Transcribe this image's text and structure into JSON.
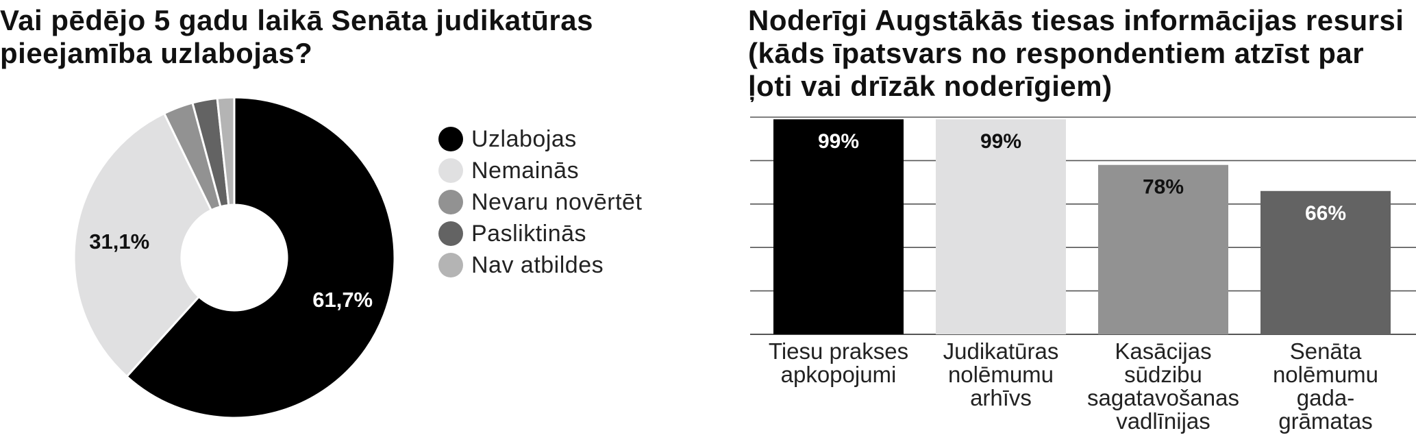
{
  "chart_data": [
    {
      "type": "pie",
      "title": "Vai pēdējo 5 gadu laikā Senāta judikatūras pieejamība uzlabojas?",
      "slices": [
        {
          "label": "Uzlabojas",
          "value": 61.7,
          "value_label": "61,7%",
          "color": "#000000",
          "label_color": "#ffffff"
        },
        {
          "label": "Nemainās",
          "value": 31.1,
          "value_label": "31,1%",
          "color": "#e0e0e1",
          "label_color": "#111111"
        },
        {
          "label": "Nevaru novērtēt",
          "value": 3.0,
          "value_label": "",
          "color": "#929292",
          "label_color": "#111111"
        },
        {
          "label": "Pasliktinās",
          "value": 2.5,
          "value_label": "",
          "color": "#636363",
          "label_color": "#111111"
        },
        {
          "label": "Nav atbildes",
          "value": 1.7,
          "value_label": "",
          "color": "#b4b4b4",
          "label_color": "#111111"
        }
      ],
      "legend": "right"
    },
    {
      "type": "bar",
      "title": "Noderīgi Augstākās tiesas informācijas resursi (kāds īpatsvars no respondentiem atzīst par ļoti vai drīzāk noderīgiem)",
      "categories": [
        [
          "Tiesu prakses",
          "apkopojumi"
        ],
        [
          "Judikatūras",
          "nolēmumu",
          "arhīvs"
        ],
        [
          "Kasācijas",
          "sūdzibu",
          "sagatavošanas",
          "vadlīnijas"
        ],
        [
          "Senāta",
          "nolēmumu",
          "gada-",
          "grāmatas"
        ]
      ],
      "values": [
        99,
        99,
        78,
        66
      ],
      "value_labels": [
        "99%",
        "99%",
        "78%",
        "66%"
      ],
      "colors": [
        "#000000",
        "#e0e0e1",
        "#929292",
        "#636363"
      ],
      "value_label_colors": [
        "#ffffff",
        "#111111",
        "#111111",
        "#ffffff"
      ],
      "ylim": [
        0,
        100
      ],
      "grid": true
    }
  ]
}
